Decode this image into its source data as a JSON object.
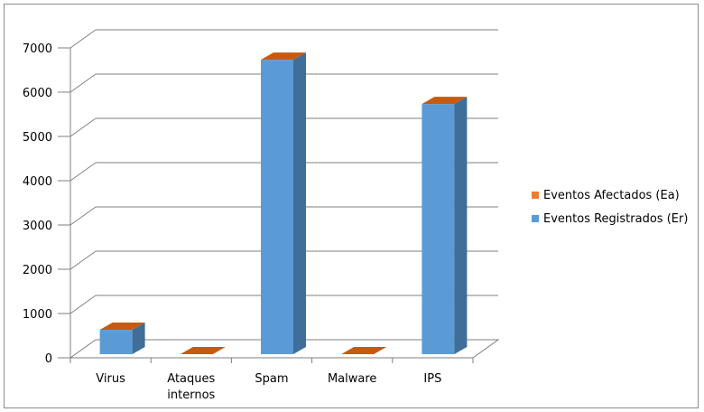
{
  "chart_data": {
    "type": "bar",
    "style": "3d-column",
    "categories": [
      "Virus",
      "Ataques\ninternos",
      "Spam",
      "Malware",
      "IPS"
    ],
    "series": [
      {
        "name": "Eventos Afectados (Ea)",
        "values": [
          0,
          0,
          0,
          0,
          0
        ]
      },
      {
        "name": "Eventos Registrados (Er)",
        "values": [
          550,
          0,
          6650,
          0,
          5650
        ]
      }
    ],
    "y_ticks": [
      0,
      1000,
      2000,
      3000,
      4000,
      5000,
      6000,
      7000
    ],
    "ylim": [
      0,
      7000
    ],
    "grid": true,
    "legend_position": "right",
    "colors": {
      "afectados_front": "#ED7D31",
      "afectados_top": "#C75B12",
      "registrados_front": "#5B9BD5",
      "registrados_side": "#3E6E99",
      "registrados_top": "#C55A11",
      "gridline": "#7f7f7f"
    }
  }
}
